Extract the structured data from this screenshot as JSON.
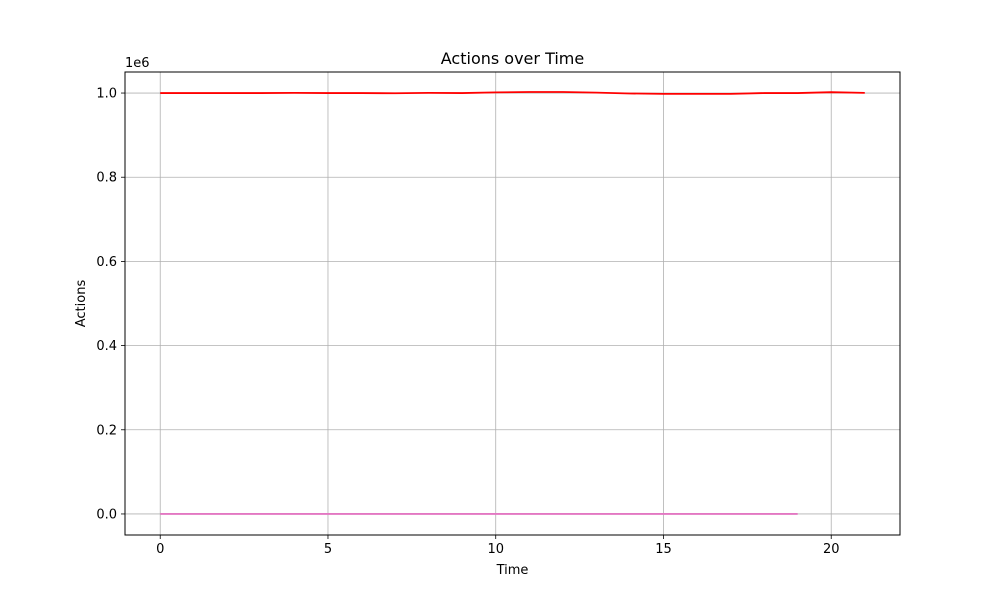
{
  "chart_data": {
    "type": "line",
    "title": "Actions over Time",
    "xlabel": "Time",
    "ylabel": "Actions",
    "y_offset_label": "1e6",
    "xlim": [
      -1.05,
      22.05
    ],
    "ylim": [
      -0.05,
      1.05
    ],
    "y_scale_factor": 1000000,
    "xticks": [
      0,
      5,
      10,
      15,
      20
    ],
    "xtick_labels": [
      "0",
      "5",
      "10",
      "15",
      "20"
    ],
    "yticks": [
      0.0,
      0.2,
      0.4,
      0.6,
      0.8,
      1.0
    ],
    "ytick_labels": [
      "0.0",
      "0.2",
      "0.4",
      "0.6",
      "0.8",
      "1.0"
    ],
    "grid": true,
    "legend": "none",
    "series": [
      {
        "color": "#ff0000",
        "x": [
          0,
          1,
          2,
          3,
          4,
          5,
          6,
          7,
          8,
          9,
          10,
          11,
          12,
          13,
          14,
          15,
          16,
          17,
          18,
          19,
          20,
          21
        ],
        "y": [
          1000000,
          1000000,
          1000000,
          1000000,
          1000500,
          1000000,
          1000000,
          999500,
          1000500,
          1000000,
          1001500,
          1002500,
          1002500,
          1001000,
          999000,
          998000,
          998000,
          998000,
          1000000,
          1000000,
          1002000,
          1000500
        ]
      },
      {
        "color": "#e377c2",
        "x": [
          0,
          1,
          2,
          3,
          4,
          5,
          6,
          7,
          8,
          9,
          10,
          11,
          12,
          13,
          14,
          15,
          16,
          17,
          18,
          19
        ],
        "y": [
          0,
          0,
          0,
          0,
          0,
          0,
          0,
          0,
          0,
          0,
          0,
          0,
          0,
          0,
          0,
          0,
          0,
          0,
          0,
          0
        ]
      }
    ]
  }
}
